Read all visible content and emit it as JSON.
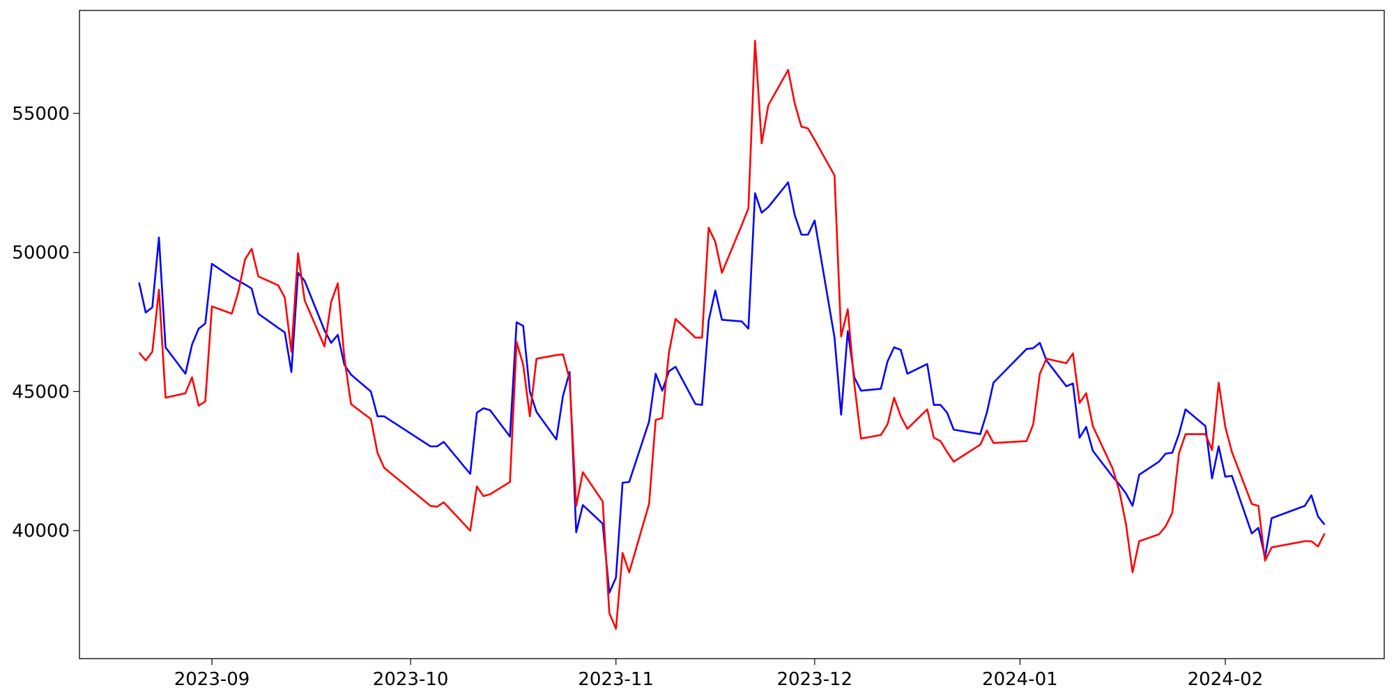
{
  "chart_data": {
    "type": "line",
    "x": [
      -11,
      -10,
      -9,
      -8,
      -7,
      -4,
      -3,
      -2,
      -1,
      0,
      3,
      4,
      5,
      6,
      7,
      10,
      11,
      12,
      13,
      14,
      17,
      18,
      19,
      20,
      21,
      24,
      25,
      26,
      33,
      34,
      35,
      39,
      40,
      41,
      42,
      45,
      46,
      47,
      48,
      49,
      52,
      53,
      54,
      55,
      56,
      59,
      60,
      61,
      62,
      63,
      66,
      67,
      68,
      69,
      70,
      73,
      74,
      75,
      76,
      77,
      80,
      81,
      82,
      83,
      84,
      87,
      88,
      89,
      90,
      91,
      94,
      95,
      96,
      97,
      98,
      101,
      102,
      103,
      104,
      105,
      108,
      109,
      110,
      111,
      112,
      116,
      117,
      118,
      123,
      124,
      125,
      126,
      129,
      130,
      131,
      132,
      133,
      136,
      137,
      138,
      139,
      140,
      143,
      144,
      145,
      146,
      147,
      150,
      151,
      152,
      153,
      154,
      157,
      158,
      159,
      160,
      165,
      166,
      167,
      168
    ],
    "series": [
      {
        "color": "#0000ff",
        "values": [
          48920,
          47840,
          48030,
          50540,
          46590,
          45640,
          46690,
          47260,
          47450,
          49590,
          49110,
          48980,
          48850,
          48700,
          47800,
          47290,
          47130,
          45700,
          49270,
          48980,
          47200,
          46750,
          47040,
          45960,
          45610,
          45000,
          44110,
          44110,
          43030,
          43030,
          43190,
          42040,
          44240,
          44400,
          44330,
          43380,
          47490,
          47360,
          45000,
          44270,
          43280,
          44840,
          45700,
          39940,
          40920,
          40250,
          37770,
          38310,
          41720,
          41750,
          43920,
          45640,
          45030,
          45730,
          45890,
          44550,
          44520,
          47550,
          48630,
          47580,
          47520,
          47260,
          52130,
          51430,
          51630,
          52520,
          51340,
          50640,
          50640,
          51150,
          46940,
          44170,
          47170,
          45510,
          45030,
          45100,
          46080,
          46590,
          46500,
          45640,
          45990,
          44520,
          44520,
          44240,
          43630,
          43470,
          44240,
          45320,
          46530,
          46560,
          46750,
          46120,
          45190,
          45290,
          43340,
          43730,
          42870,
          41940,
          41660,
          41340,
          40890,
          42010,
          42480,
          42770,
          42800,
          43470,
          44360,
          43760,
          41880,
          43030,
          41940,
          41970,
          39900,
          40100,
          39040,
          40450,
          40890,
          41270,
          40510,
          40220
        ]
      },
      {
        "color": "#ff0000",
        "values": [
          46400,
          46120,
          46430,
          48660,
          44780,
          44940,
          45510,
          44490,
          44650,
          48060,
          47800,
          48600,
          49750,
          50130,
          49140,
          48820,
          48380,
          46430,
          49970,
          48280,
          46620,
          48220,
          48890,
          46210,
          44550,
          44010,
          42800,
          42260,
          40890,
          40860,
          41020,
          40000,
          41590,
          41240,
          41310,
          41750,
          46780,
          45960,
          44110,
          46180,
          46310,
          46340,
          45450,
          40890,
          42100,
          41050,
          37040,
          36470,
          39200,
          38500,
          40960,
          43980,
          44050,
          46400,
          47610,
          46940,
          46940,
          50890,
          50380,
          49270,
          50990,
          51590,
          57610,
          53920,
          55290,
          56560,
          55350,
          54520,
          54460,
          54050,
          52770,
          46980,
          47960,
          45260,
          43310,
          43440,
          43820,
          44780,
          44110,
          43660,
          44360,
          43340,
          43220,
          42830,
          42480,
          43090,
          43600,
          43150,
          43220,
          43820,
          45640,
          46180,
          46020,
          46370,
          44590,
          44940,
          43760,
          42230,
          41430,
          40250,
          38500,
          39620,
          39870,
          40160,
          40640,
          42770,
          43470,
          43470,
          42900,
          45320,
          43730,
          42830,
          40960,
          40890,
          38920,
          39400,
          39620,
          39620,
          39430,
          39900
        ]
      }
    ],
    "xlim": [
      -20,
      177
    ],
    "xticks": [
      {
        "value": 0,
        "label": "2023-09"
      },
      {
        "value": 30,
        "label": "2023-10"
      },
      {
        "value": 61,
        "label": "2023-11"
      },
      {
        "value": 91,
        "label": "2023-12"
      },
      {
        "value": 122,
        "label": "2024-01"
      },
      {
        "value": 153,
        "label": "2024-02"
      }
    ],
    "ylim": [
      35400,
      58700
    ],
    "yticks": [
      40000,
      45000,
      50000,
      55000
    ],
    "grid": false
  }
}
